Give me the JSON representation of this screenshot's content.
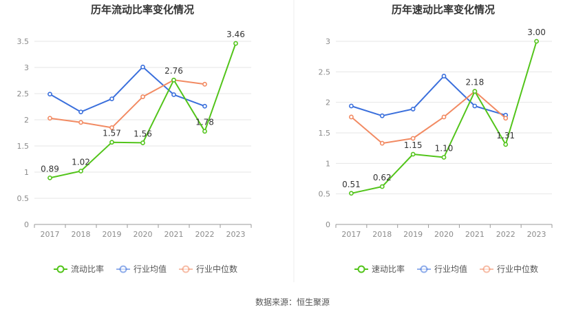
{
  "source_text": "数据来源：恒生聚源",
  "colors": {
    "green": "#52c41a",
    "blue": "#3a6fdc",
    "orange": "#f28a62",
    "grid": "#e6e6e6",
    "axis": "#9a9a9a",
    "tick": "#8a8a8a",
    "title": "#333333",
    "label": "#333333",
    "divider": "#eeeeee"
  },
  "chart_data": [
    {
      "type": "line",
      "title": "历年流动比率变化情况",
      "categories": [
        "2017",
        "2018",
        "2019",
        "2020",
        "2021",
        "2022",
        "2023"
      ],
      "ylim": [
        0,
        3.5
      ],
      "yticks": [
        0,
        0.5,
        1,
        1.5,
        2,
        2.5,
        3,
        3.5
      ],
      "ytick_labels": [
        "0",
        "0.5",
        "1",
        "1.5",
        "2",
        "2.5",
        "3",
        "3.5"
      ],
      "grid": true,
      "legend_position": "bottom",
      "series": [
        {
          "name": "流动比率",
          "color": "#52c41a",
          "values": [
            0.89,
            1.02,
            1.57,
            1.56,
            2.76,
            1.78,
            3.46
          ],
          "labels": [
            "0.89",
            "1.02",
            "1.57",
            "1.56",
            "2.76",
            "1.78",
            "3.46"
          ]
        },
        {
          "name": "行业均值",
          "color": "#3a6fdc",
          "values": [
            2.49,
            2.15,
            2.4,
            3.01,
            2.48,
            2.26,
            null
          ]
        },
        {
          "name": "行业中位数",
          "color": "#f28a62",
          "values": [
            2.03,
            1.95,
            1.85,
            2.44,
            2.76,
            2.68,
            null
          ]
        }
      ]
    },
    {
      "type": "line",
      "title": "历年速动比率变化情况",
      "categories": [
        "2017",
        "2018",
        "2019",
        "2020",
        "2021",
        "2022",
        "2023"
      ],
      "ylim": [
        0,
        3
      ],
      "yticks": [
        0,
        0.5,
        1,
        1.5,
        2,
        2.5,
        3
      ],
      "ytick_labels": [
        "0",
        "0.5",
        "1",
        "1.5",
        "2",
        "2.5",
        "3"
      ],
      "grid": true,
      "legend_position": "bottom",
      "series": [
        {
          "name": "速动比率",
          "color": "#52c41a",
          "values": [
            0.51,
            0.62,
            1.15,
            1.1,
            2.18,
            1.31,
            3.0
          ],
          "labels": [
            "0.51",
            "0.62",
            "1.15",
            "1.10",
            "2.18",
            "1.31",
            "3.00"
          ]
        },
        {
          "name": "行业均值",
          "color": "#3a6fdc",
          "values": [
            1.94,
            1.78,
            1.89,
            2.43,
            1.94,
            1.79,
            null
          ]
        },
        {
          "name": "行业中位数",
          "color": "#f28a62",
          "values": [
            1.76,
            1.33,
            1.41,
            1.76,
            2.18,
            1.74,
            null
          ]
        }
      ]
    }
  ]
}
